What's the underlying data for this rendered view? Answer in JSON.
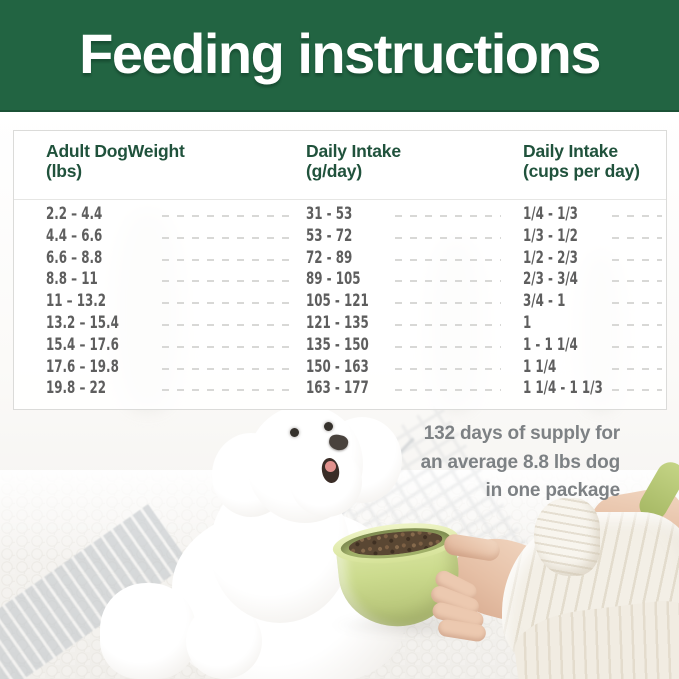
{
  "banner": {
    "title": "Feeding instructions"
  },
  "table": {
    "columns": [
      {
        "title": "Adult DogWeight",
        "unit": "(lbs)"
      },
      {
        "title": "Daily Intake",
        "unit": "(g/day)"
      },
      {
        "title": "Daily Intake",
        "unit": "(cups per day)"
      }
    ],
    "rows": [
      {
        "weight": "2.2 – 4.4",
        "grams": "31 - 53",
        "cups": "1/4 - 1/3"
      },
      {
        "weight": "4.4 – 6.6",
        "grams": "53 - 72",
        "cups": "1/3 - 1/2"
      },
      {
        "weight": "6.6 – 8.8",
        "grams": "72 - 89",
        "cups": "1/2 - 2/3"
      },
      {
        "weight": "8.8 – 11",
        "grams": "89 - 105",
        "cups": "2/3 - 3/4"
      },
      {
        "weight": "11 – 13.2",
        "grams": "105 - 121",
        "cups": "3/4 - 1"
      },
      {
        "weight": "13.2 – 15.4",
        "grams": "121 - 135",
        "cups": "1"
      },
      {
        "weight": "15.4 – 17.6",
        "grams": "135 - 150",
        "cups": "1 - 1 1/4"
      },
      {
        "weight": "17.6 – 19.8",
        "grams": "150 - 163",
        "cups": "1 1/4"
      },
      {
        "weight": "19.8 – 22",
        "grams": "163 - 177",
        "cups": "1 1/4 - 1 1/3"
      }
    ]
  },
  "note": {
    "lines": [
      "132 days of supply for",
      "an average 8.8 lbs dog",
      "in one package"
    ]
  },
  "colors": {
    "banner": "#226442",
    "headerText": "#20523c",
    "rowText": "#5e5e5e",
    "dash": "#d8d8d6",
    "border": "#dbdbd9",
    "note": "#7d8184",
    "bowl": "#ccdb8e",
    "bowlDeep": "#a3b26b",
    "kibble": "#5a4733",
    "scoop": "#c4d485",
    "mosaic": "#c3c8cc"
  }
}
